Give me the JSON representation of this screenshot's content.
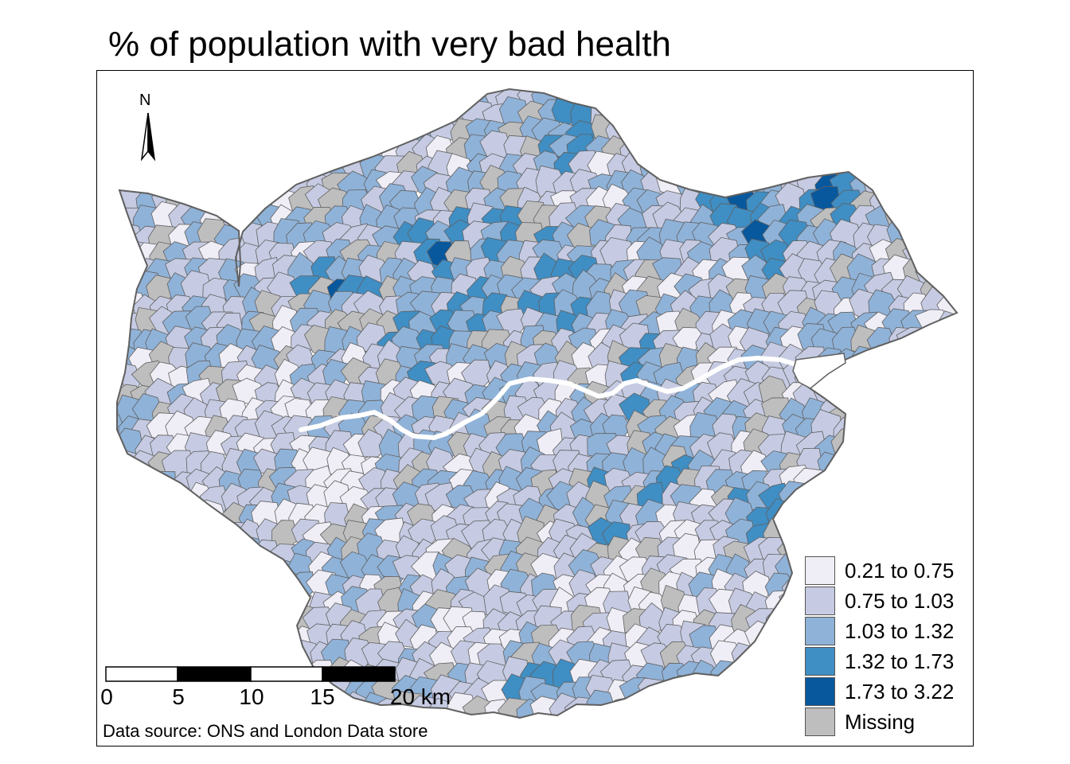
{
  "title": "% of population with very bad health",
  "source": "Data source: ONS and London Data store",
  "north_label": "N",
  "scale_bar": {
    "ticks": [
      "0",
      "5",
      "10",
      "15",
      "20 km"
    ]
  },
  "legend": {
    "items": [
      {
        "label": "0.21 to 0.75",
        "color": "#efedf5"
      },
      {
        "label": "0.75 to 1.03",
        "color": "#c6cbe3"
      },
      {
        "label": "1.03 to 1.32",
        "color": "#8fb2d8"
      },
      {
        "label": "1.32 to 1.73",
        "color": "#3f8ec4"
      },
      {
        "label": "1.73 to 3.22",
        "color": "#08589e"
      },
      {
        "label": "Missing",
        "color": "#bebebe"
      }
    ]
  },
  "colors": {
    "boundary": "#606060",
    "river": "#ffffff"
  }
}
